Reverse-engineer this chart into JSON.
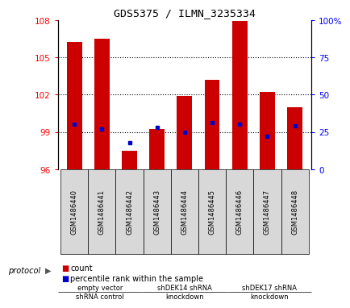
{
  "title": "GDS5375 / ILMN_3235334",
  "samples": [
    "GSM1486440",
    "GSM1486441",
    "GSM1486442",
    "GSM1486443",
    "GSM1486444",
    "GSM1486445",
    "GSM1486446",
    "GSM1486447",
    "GSM1486448"
  ],
  "counts": [
    106.2,
    106.5,
    97.5,
    99.2,
    101.9,
    103.2,
    107.9,
    102.2,
    101.0
  ],
  "percentile_ranks": [
    30,
    27,
    18,
    28,
    25,
    31,
    30,
    22,
    29
  ],
  "ylim_left": [
    96,
    108
  ],
  "ylim_right": [
    0,
    100
  ],
  "yticks_left": [
    96,
    99,
    102,
    105,
    108
  ],
  "yticks_right": [
    0,
    25,
    50,
    75,
    100
  ],
  "bar_color": "#cc0000",
  "dot_color": "#0000cc",
  "bg_color": "#ffffff",
  "plot_bg": "#ffffff",
  "label_bg": "#d8d8d8",
  "grid_lines": [
    99,
    102,
    105
  ],
  "protocol_groups": [
    {
      "label": "empty vector\nshRNA control",
      "start": 0,
      "end": 3,
      "color": "#c8f0c8"
    },
    {
      "label": "shDEK14 shRNA\nknockdown",
      "start": 3,
      "end": 6,
      "color": "#66dd66"
    },
    {
      "label": "shDEK17 shRNA\nknockdown",
      "start": 6,
      "end": 9,
      "color": "#66dd66"
    }
  ],
  "legend_count_label": "count",
  "legend_pct_label": "percentile rank within the sample",
  "protocol_label": "protocol"
}
